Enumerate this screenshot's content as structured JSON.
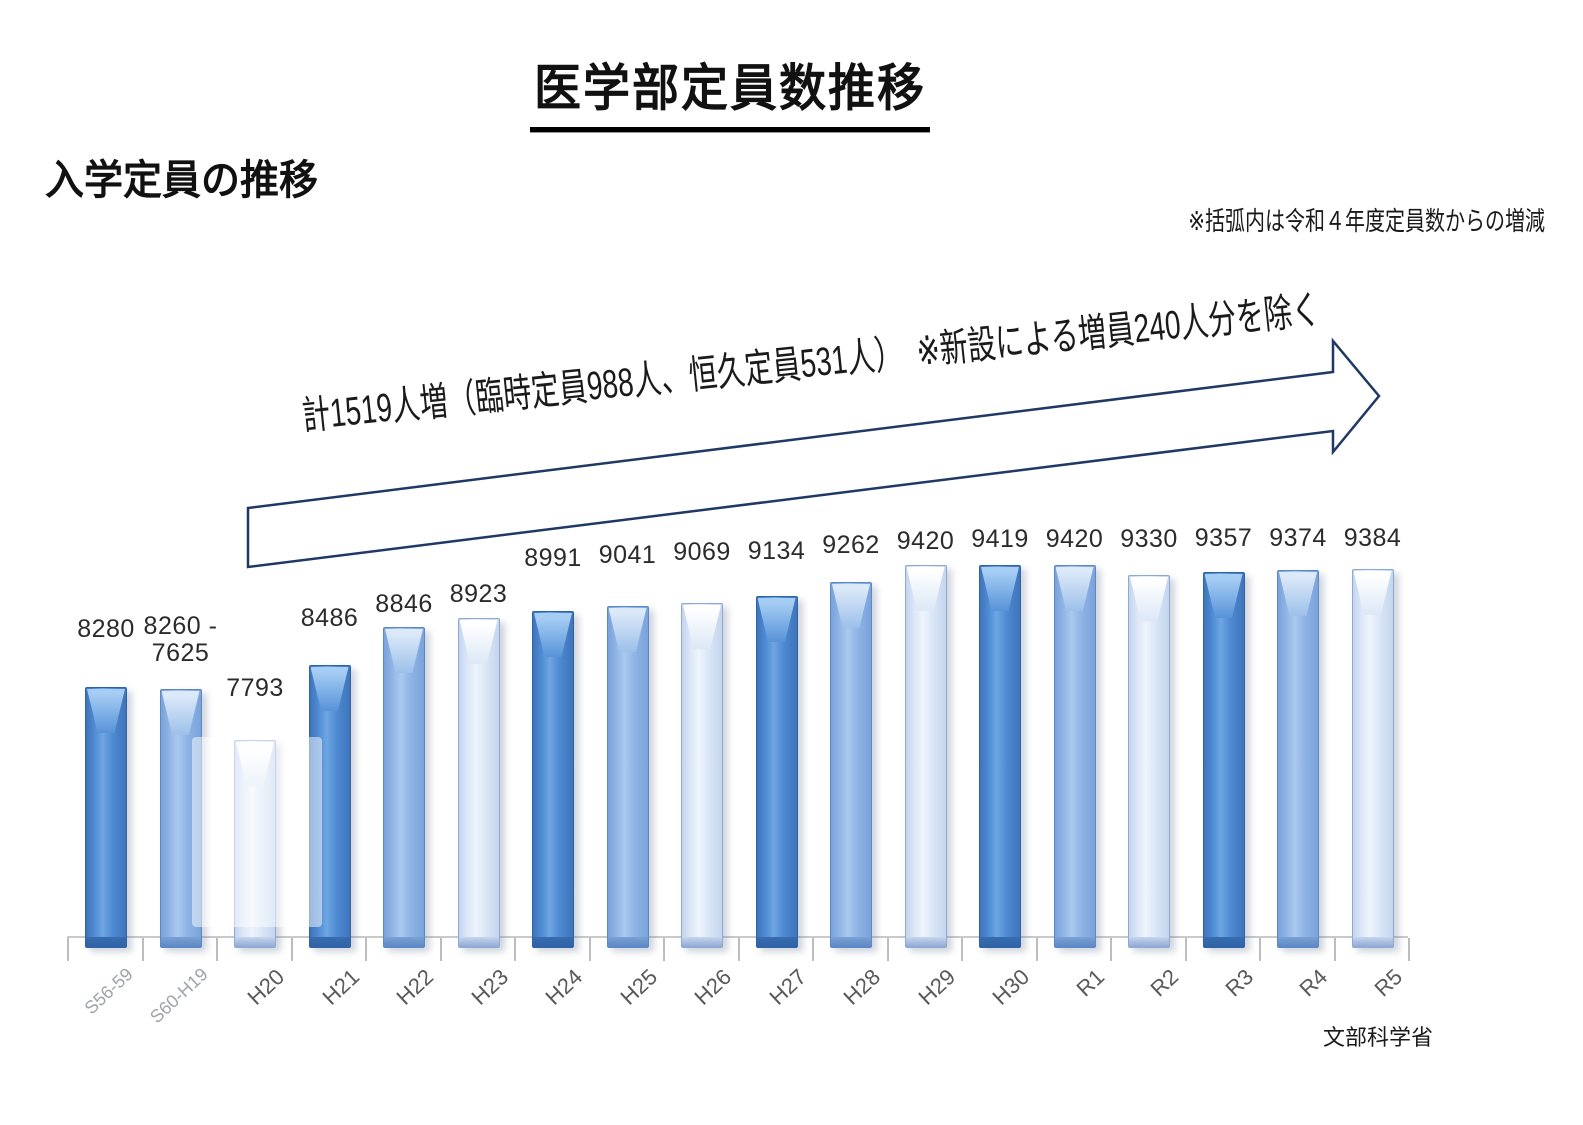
{
  "page": {
    "title": "医学部定員数推移",
    "subtitle": "入学定員の推移",
    "note": "※括弧内は令和４年度定員数からの増減",
    "annotation": "計1519人増（臨時定員988人、恒久定員531人）　※新設による増員240人分を除く",
    "credit": "文部科学省"
  },
  "chart_data": {
    "type": "bar",
    "title": "入学定員の推移",
    "categories": [
      "S56-59",
      "S60-H19",
      "H20",
      "H21",
      "H22",
      "H23",
      "H24",
      "H25",
      "H26",
      "H27",
      "H28",
      "H29",
      "H30",
      "R1",
      "R2",
      "R3",
      "R4",
      "R5"
    ],
    "values": [
      8280,
      8260,
      7793,
      8486,
      8846,
      8923,
      8991,
      9041,
      9069,
      9134,
      9262,
      9420,
      9419,
      9420,
      9330,
      9357,
      9374,
      9384
    ],
    "value_labels": [
      "8280",
      "8260 -\n7625",
      "7793",
      "8486",
      "8846",
      "8923",
      "8991",
      "9041",
      "9069",
      "9134",
      "9262",
      "9420",
      "9419",
      "9420",
      "9330",
      "9357",
      "9374",
      "9384"
    ],
    "xlabel": "",
    "ylabel": "",
    "ylim": [
      5850,
      9700
    ],
    "grid": false,
    "legend": null,
    "bar_color_cycle": [
      "dark",
      "medium",
      "light"
    ],
    "colors": {
      "dark": "#4e8ad2",
      "medium": "#8fb4e5",
      "light": "#dbe6f6",
      "arrow_outline": "#1f3864",
      "axis": "#c9c9c9"
    },
    "layout": {
      "label_cy": [
        631,
        628,
        690,
        620,
        606,
        596,
        560,
        557,
        554,
        553,
        547,
        543,
        541,
        541,
        541,
        540,
        540,
        540
      ],
      "muted_xlabel_count": 2,
      "legend_position": "none"
    }
  }
}
